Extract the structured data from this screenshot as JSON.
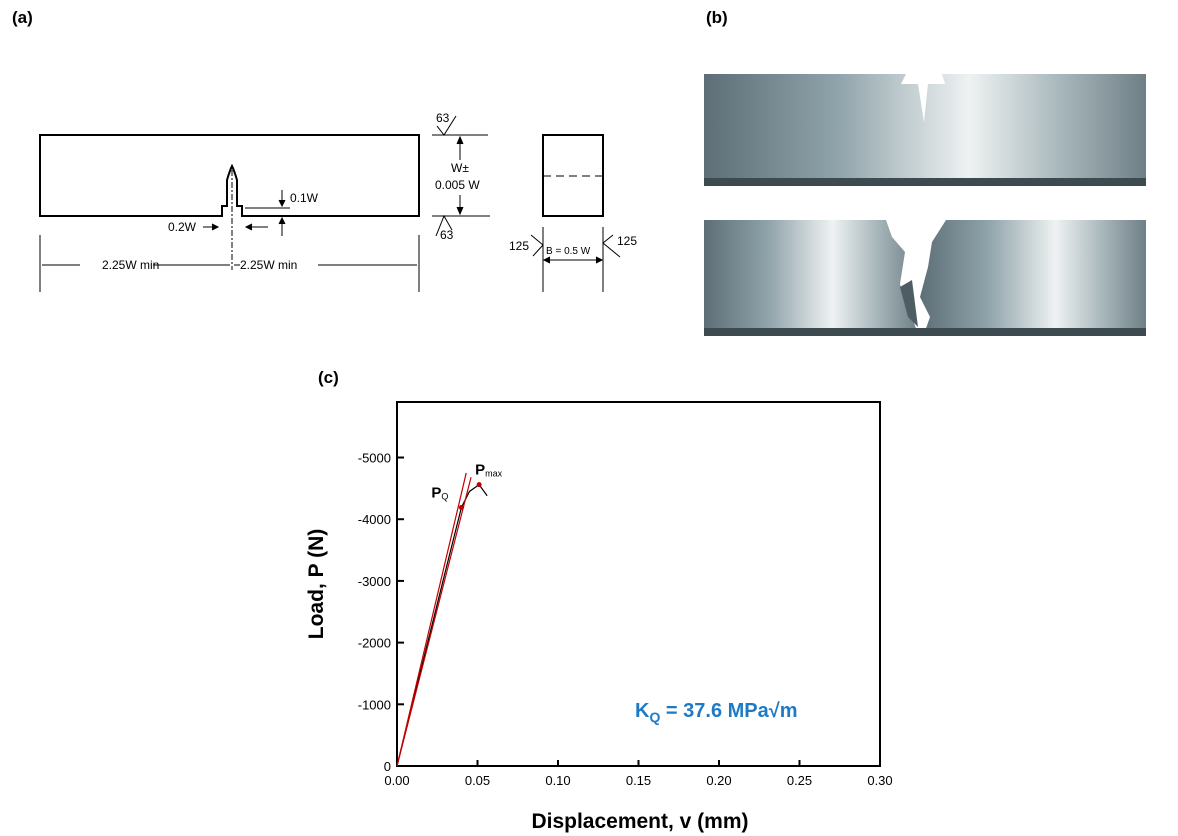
{
  "panels": {
    "a": "(a)",
    "b": "(b)",
    "c": "(c)"
  },
  "diagram": {
    "dim_notch_depth": "0.1W",
    "dim_notch_width": "0.2W",
    "dim_left": "2.25W min",
    "dim_right": "2.25W min",
    "dim_height_1": "W±",
    "dim_height_2": "0.005 W",
    "roughness_top": "63",
    "roughness_bottom": "63",
    "roughness_left": "125",
    "roughness_right": "125",
    "dim_thickness": "B = 0.5 W"
  },
  "chart_data": {
    "type": "line",
    "xlabel": "Displacement, v (mm)",
    "ylabel": "Load, P (N)",
    "xlim": [
      0,
      0.3
    ],
    "ylim": [
      0,
      -5900
    ],
    "xticks": [
      "0.00",
      "0.05",
      "0.10",
      "0.15",
      "0.20",
      "0.25",
      "0.30"
    ],
    "xtick_values": [
      0,
      0.05,
      0.1,
      0.15,
      0.2,
      0.25,
      0.3
    ],
    "yticks": [
      "0",
      "-1000",
      "-2000",
      "-3000",
      "-4000",
      "-5000"
    ],
    "ytick_values": [
      0,
      -1000,
      -2000,
      -3000,
      -4000,
      -5000
    ],
    "series": [
      {
        "color": "#000000",
        "x": [
          0,
          0.01,
          0.02,
          0.03,
          0.04,
          0.045,
          0.051,
          0.056
        ],
        "y": [
          0,
          -1050,
          -2100,
          -3150,
          -4190,
          -4450,
          -4560,
          -4380
        ]
      },
      {
        "color": "#c00000",
        "x": [
          0,
          0.043
        ],
        "y": [
          0,
          -4750
        ]
      },
      {
        "color": "#c00000",
        "x": [
          0,
          0.046
        ],
        "y": [
          0,
          -4680
        ]
      }
    ],
    "points": [
      {
        "label": "P",
        "sub": "Q",
        "x": 0.04,
        "y": -4190,
        "color": "#c00000"
      },
      {
        "label": "P",
        "sub": "max",
        "x": 0.051,
        "y": -4560,
        "color": "#c00000"
      }
    ],
    "annotation": {
      "text": "K",
      "sub": "Q",
      "rest": " = 37.6 MPa√m",
      "color": "#1f7ac6"
    }
  }
}
